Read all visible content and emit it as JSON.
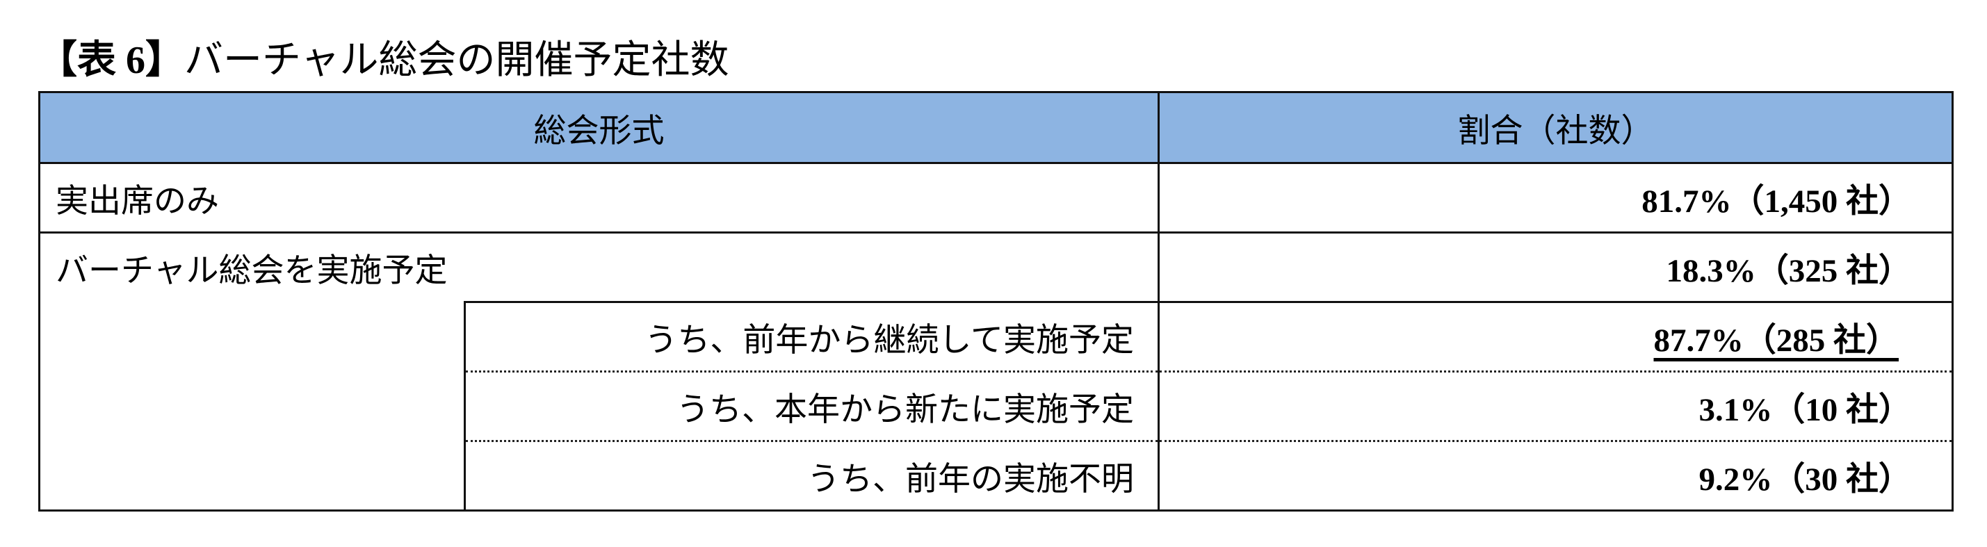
{
  "title": {
    "prefix": "【表 6】",
    "text": "バーチャル総会の開催予定社数"
  },
  "table": {
    "headers": [
      "総会形式",
      "割合（社数）"
    ],
    "rows": [
      {
        "label": "実出席のみ",
        "value": "81.7%（1,450 社）"
      },
      {
        "label": "バーチャル総会を実施予定",
        "value": "18.3%（325 社）"
      }
    ],
    "subrows": [
      {
        "label": "うち、前年から継続して実施予定",
        "value": "87.7%（285 社）",
        "underlined": true
      },
      {
        "label": "うち、本年から新たに実施予定",
        "value": "3.1%（10 社）"
      },
      {
        "label": "うち、前年の実施不明",
        "value": "9.2%（30 社）"
      }
    ]
  },
  "colors": {
    "header_bg": "#8DB4E2"
  }
}
